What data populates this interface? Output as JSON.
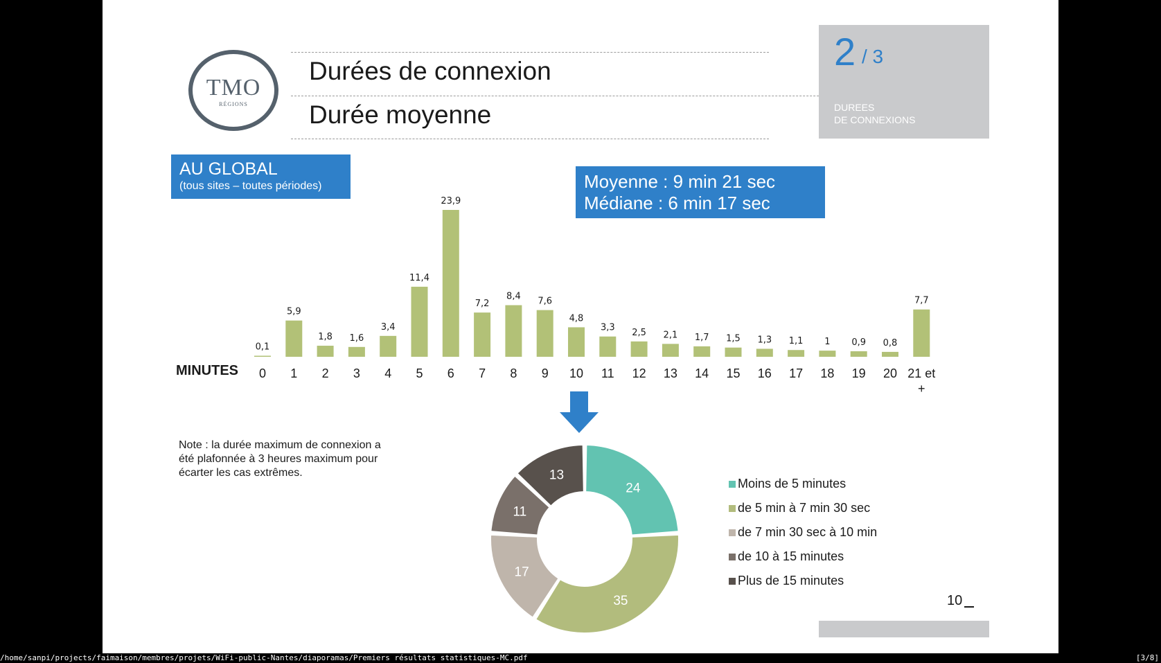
{
  "header": {
    "logo_main": "TMO",
    "logo_sub": "RÉGIONS",
    "title": "Durées de connexion",
    "subtitle": "Durée moyenne",
    "section_number": "2",
    "section_total": "/ 3",
    "section_label_line1": "DUREES",
    "section_label_line2": "DE CONNEXIONS"
  },
  "scope": {
    "title": "AU GLOBAL",
    "subtitle": "(tous sites – toutes périodes)"
  },
  "stats": {
    "mean": "Moyenne : 9 min 21 sec",
    "median": "Médiane : 6 min 17 sec"
  },
  "note": "Note : la durée maximum de connexion a été plafonnée à 3 heures maximum pour écarter les cas extrêmes.",
  "page_number": "10",
  "colors": {
    "accent_blue": "#2f80c9",
    "bar_green": "#b2c177",
    "badge_gray": "#c9cacc"
  },
  "chart_data": [
    {
      "type": "bar",
      "title": "",
      "xlabel": "MINUTES",
      "ylabel": "",
      "ylim": [
        0,
        25
      ],
      "grid": false,
      "categories": [
        "0",
        "1",
        "2",
        "3",
        "4",
        "5",
        "6",
        "7",
        "8",
        "9",
        "10",
        "11",
        "12",
        "13",
        "14",
        "15",
        "16",
        "17",
        "18",
        "19",
        "20",
        "21 et +"
      ],
      "values": [
        0.1,
        5.9,
        1.8,
        1.6,
        3.4,
        11.4,
        23.9,
        7.2,
        8.4,
        7.6,
        4.8,
        3.3,
        2.5,
        2.1,
        1.7,
        1.5,
        1.3,
        1.1,
        1,
        0.9,
        0.8,
        7.7
      ],
      "value_labels": [
        "0,1",
        "5,9",
        "1,8",
        "1,6",
        "3,4",
        "11,4",
        "23,9",
        "7,2",
        "8,4",
        "7,6",
        "4,8",
        "3,3",
        "2,5",
        "2,1",
        "1,7",
        "1,5",
        "1,3",
        "1,1",
        "1",
        "0,9",
        "0,8",
        "7,7"
      ]
    },
    {
      "type": "pie",
      "hole": true,
      "legend": "right",
      "slices": [
        {
          "label": "Moins de 5 minutes",
          "value": 24,
          "text": "24",
          "color": "#62c3b1"
        },
        {
          "label": "de 5 min à 7 min 30 sec",
          "value": 35,
          "text": "35",
          "color": "#b2bc7d"
        },
        {
          "label": "de 7 min 30 sec à 10 min",
          "value": 17,
          "text": "17",
          "color": "#bfb5ab"
        },
        {
          "label": "de 10 à 15 minutes",
          "value": 11,
          "text": "11",
          "color": "#7a706a"
        },
        {
          "label": "Plus de 15 minutes",
          "value": 13,
          "text": "13",
          "color": "#58514c"
        }
      ]
    }
  ],
  "statusbar": {
    "path": "/home/sanpi/projects/faimaison/membres/projets/WiFi-public-Nantes/diaporamas/Premiers résultats statistiques-MC.pdf",
    "page": "[3/8]"
  }
}
